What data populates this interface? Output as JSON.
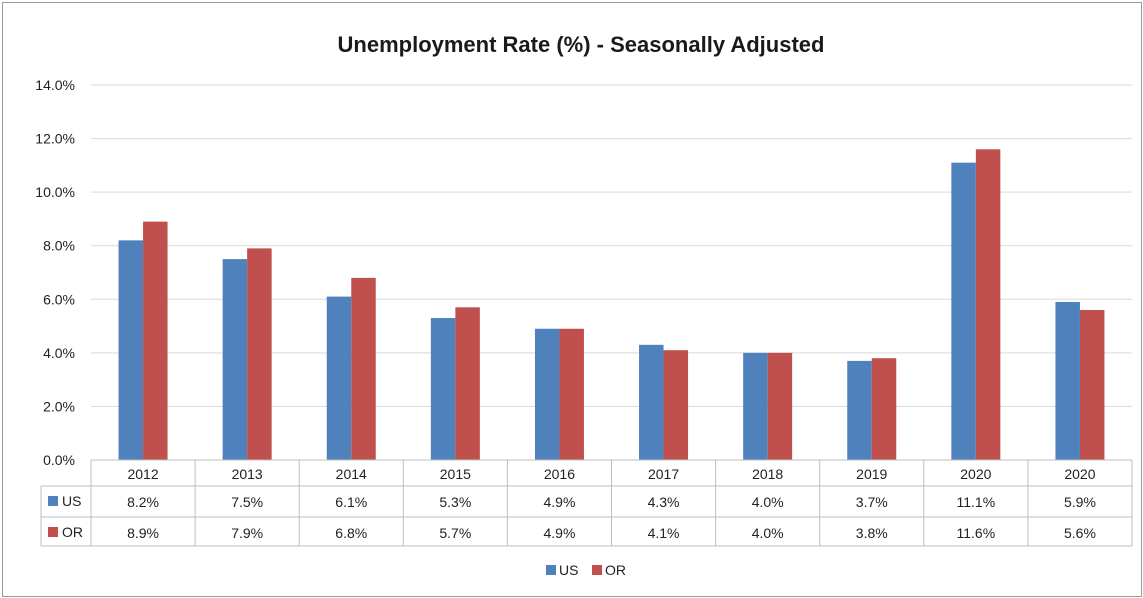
{
  "chart_data": {
    "type": "bar",
    "title": "Unemployment Rate (%) - Seasonally Adjusted",
    "categories": [
      "2012",
      "2013",
      "2014",
      "2015",
      "2016",
      "2017",
      "2018",
      "2019",
      "2020",
      "2020"
    ],
    "series": [
      {
        "name": "US",
        "color": "#4f81bd",
        "values": [
          8.2,
          7.5,
          6.1,
          5.3,
          4.9,
          4.3,
          4.0,
          3.7,
          11.1,
          5.9
        ],
        "labels": [
          "8.2%",
          "7.5%",
          "6.1%",
          "5.3%",
          "4.9%",
          "4.3%",
          "4.0%",
          "3.7%",
          "11.1%",
          "5.9%"
        ]
      },
      {
        "name": "OR",
        "color": "#c0504d",
        "values": [
          8.9,
          7.9,
          6.8,
          5.7,
          4.9,
          4.1,
          4.0,
          3.8,
          11.6,
          5.6
        ],
        "labels": [
          "8.9%",
          "7.9%",
          "6.8%",
          "5.7%",
          "4.9%",
          "4.1%",
          "4.0%",
          "3.8%",
          "11.6%",
          "5.6%"
        ]
      }
    ],
    "y_ticks": [
      "0.0%",
      "2.0%",
      "4.0%",
      "6.0%",
      "8.0%",
      "10.0%",
      "12.0%",
      "14.0%"
    ],
    "ylim": [
      0,
      14
    ],
    "grid": true,
    "data_table": true,
    "legend_position": "bottom"
  }
}
